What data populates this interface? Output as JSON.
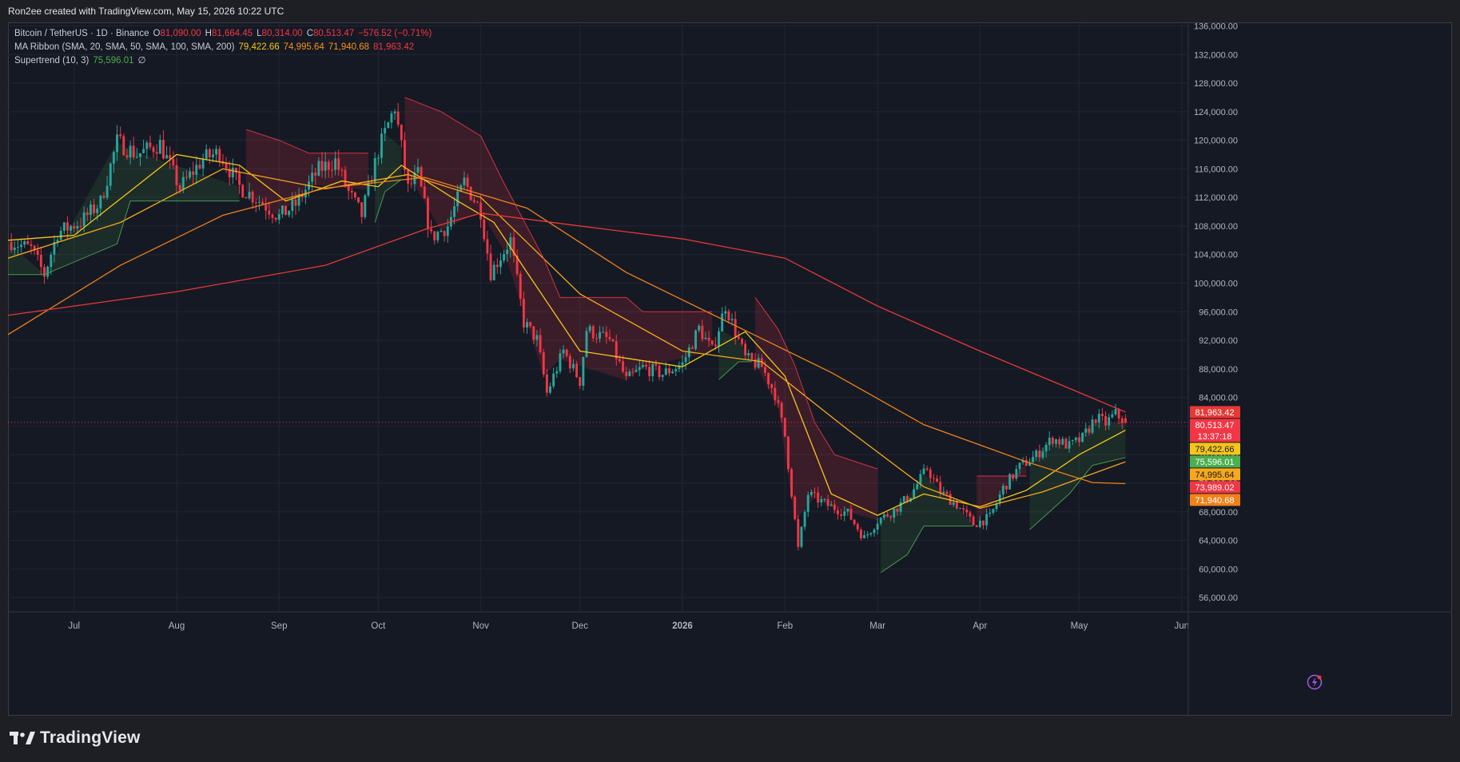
{
  "header": {
    "created_text": "Ron2ee created with TradingView.com, May 15, 2026 10:22 UTC"
  },
  "legend": {
    "symbol": "Bitcoin / TetherUS · 1D · Binance",
    "o_label": "O",
    "o_value": "81,090.00",
    "h_label": "H",
    "h_value": "81,664.45",
    "l_label": "L",
    "l_value": "80,314.00",
    "c_label": "C",
    "c_value": "80,513.47",
    "change": "−576.52 (−0.71%)",
    "ma_title": "MA Ribbon (SMA, 20, SMA, 50, SMA, 100, SMA, 200)",
    "ma_values": [
      "79,422.66",
      "74,995.64",
      "71,940.68",
      "81,963.42"
    ],
    "st_title": "Supertrend (10, 3)",
    "st_value": "75,596.01",
    "st_symbol": "∅"
  },
  "footer": {
    "brand": "TradingView"
  },
  "icons": {
    "brand": "tradingview-logo-icon",
    "alert": "lightning-alert-icon"
  },
  "colors": {
    "up": "#26a69a",
    "down": "#f23645",
    "sma20": "#f5c518",
    "sma50": "#f7a91a",
    "sma100": "#f0811a",
    "sma200": "#e53935",
    "st_up": "#4caf50",
    "st_down": "#f23645"
  },
  "chart_data": {
    "type": "candlestick",
    "x_ticks": [
      "Jul",
      "Aug",
      "Sep",
      "Oct",
      "Nov",
      "Dec",
      "2026",
      "Feb",
      "Mar",
      "Apr",
      "May",
      "Jun"
    ],
    "x_tick_dates": [
      "2025-07-01",
      "2025-08-01",
      "2025-09-01",
      "2025-10-01",
      "2025-11-01",
      "2025-12-01",
      "2026-01-01",
      "2026-02-01",
      "2026-03-01",
      "2026-04-01",
      "2026-05-01",
      "2026-06-01"
    ],
    "x_range": [
      "2025-06-11",
      "2026-06-03"
    ],
    "y_ticks": [
      56000,
      60000,
      64000,
      68000,
      72000,
      76000,
      80000,
      84000,
      88000,
      92000,
      96000,
      100000,
      104000,
      108000,
      112000,
      116000,
      120000,
      124000,
      128000,
      132000,
      136000
    ],
    "ylim": [
      54000,
      136500
    ],
    "price_line": 80513.47,
    "closes": [
      {
        "date": "2025-06-12",
        "close": 105800
      },
      {
        "date": "2025-06-18",
        "close": 104800
      },
      {
        "date": "2025-06-22",
        "close": 101200
      },
      {
        "date": "2025-06-26",
        "close": 107100
      },
      {
        "date": "2025-07-03",
        "close": 108600
      },
      {
        "date": "2025-07-09",
        "close": 111300
      },
      {
        "date": "2025-07-14",
        "close": 119800
      },
      {
        "date": "2025-07-20",
        "close": 118000
      },
      {
        "date": "2025-07-27",
        "close": 119500
      },
      {
        "date": "2025-08-02",
        "close": 113300
      },
      {
        "date": "2025-08-09",
        "close": 117400
      },
      {
        "date": "2025-08-14",
        "close": 118300
      },
      {
        "date": "2025-08-20",
        "close": 113500
      },
      {
        "date": "2025-08-27",
        "close": 111200
      },
      {
        "date": "2025-09-01",
        "close": 109300
      },
      {
        "date": "2025-09-06",
        "close": 111000
      },
      {
        "date": "2025-09-13",
        "close": 115900
      },
      {
        "date": "2025-09-18",
        "close": 117100
      },
      {
        "date": "2025-09-22",
        "close": 112700
      },
      {
        "date": "2025-09-26",
        "close": 109500
      },
      {
        "date": "2025-10-01",
        "close": 118500
      },
      {
        "date": "2025-10-06",
        "close": 124700
      },
      {
        "date": "2025-10-10",
        "close": 113200
      },
      {
        "date": "2025-10-13",
        "close": 115200
      },
      {
        "date": "2025-10-17",
        "close": 106400
      },
      {
        "date": "2025-10-22",
        "close": 108000
      },
      {
        "date": "2025-10-27",
        "close": 114200
      },
      {
        "date": "2025-11-01",
        "close": 110100
      },
      {
        "date": "2025-11-04",
        "close": 101500
      },
      {
        "date": "2025-11-10",
        "close": 106000
      },
      {
        "date": "2025-11-14",
        "close": 94500
      },
      {
        "date": "2025-11-18",
        "close": 92100
      },
      {
        "date": "2025-11-21",
        "close": 84600
      },
      {
        "date": "2025-11-26",
        "close": 90500
      },
      {
        "date": "2025-12-01",
        "close": 86300
      },
      {
        "date": "2025-12-03",
        "close": 93500
      },
      {
        "date": "2025-12-10",
        "close": 92000
      },
      {
        "date": "2025-12-15",
        "close": 86400
      },
      {
        "date": "2025-12-20",
        "close": 88200
      },
      {
        "date": "2025-12-26",
        "close": 87300
      },
      {
        "date": "2026-01-01",
        "close": 88700
      },
      {
        "date": "2026-01-06",
        "close": 93700
      },
      {
        "date": "2026-01-10",
        "close": 90500
      },
      {
        "date": "2026-01-14",
        "close": 96900
      },
      {
        "date": "2026-01-20",
        "close": 89500
      },
      {
        "date": "2026-01-25",
        "close": 88300
      },
      {
        "date": "2026-01-29",
        "close": 84500
      },
      {
        "date": "2026-02-01",
        "close": 78600
      },
      {
        "date": "2026-02-05",
        "close": 62800
      },
      {
        "date": "2026-02-08",
        "close": 70500
      },
      {
        "date": "2026-02-14",
        "close": 68900
      },
      {
        "date": "2026-02-20",
        "close": 67800
      },
      {
        "date": "2026-02-25",
        "close": 64300
      },
      {
        "date": "2026-03-01",
        "close": 66800
      },
      {
        "date": "2026-03-06",
        "close": 68200
      },
      {
        "date": "2026-03-11",
        "close": 70400
      },
      {
        "date": "2026-03-16",
        "close": 74100
      },
      {
        "date": "2026-03-20",
        "close": 70800
      },
      {
        "date": "2026-03-25",
        "close": 69000
      },
      {
        "date": "2026-03-30",
        "close": 66300
      },
      {
        "date": "2026-04-04",
        "close": 67200
      },
      {
        "date": "2026-04-08",
        "close": 71300
      },
      {
        "date": "2026-04-13",
        "close": 74300
      },
      {
        "date": "2026-04-18",
        "close": 75900
      },
      {
        "date": "2026-04-23",
        "close": 78300
      },
      {
        "date": "2026-04-28",
        "close": 77200
      },
      {
        "date": "2026-05-02",
        "close": 78300
      },
      {
        "date": "2026-05-06",
        "close": 81200
      },
      {
        "date": "2026-05-09",
        "close": 80400
      },
      {
        "date": "2026-05-12",
        "close": 81700
      },
      {
        "date": "2026-05-15",
        "close": 80513
      }
    ],
    "series": [
      {
        "key": "sma20",
        "points": [
          {
            "date": "2025-06-11",
            "value": 106000
          },
          {
            "date": "2025-07-01",
            "value": 106700
          },
          {
            "date": "2025-07-15",
            "value": 111800
          },
          {
            "date": "2025-08-01",
            "value": 118000
          },
          {
            "date": "2025-08-20",
            "value": 116500
          },
          {
            "date": "2025-09-03",
            "value": 111500
          },
          {
            "date": "2025-09-20",
            "value": 114300
          },
          {
            "date": "2025-10-01",
            "value": 113500
          },
          {
            "date": "2025-10-08",
            "value": 116500
          },
          {
            "date": "2025-10-25",
            "value": 111500
          },
          {
            "date": "2025-11-05",
            "value": 108500
          },
          {
            "date": "2025-11-15",
            "value": 101500
          },
          {
            "date": "2025-12-01",
            "value": 90500
          },
          {
            "date": "2025-12-15",
            "value": 89500
          },
          {
            "date": "2026-01-01",
            "value": 88300
          },
          {
            "date": "2026-01-20",
            "value": 93200
          },
          {
            "date": "2026-02-01",
            "value": 87000
          },
          {
            "date": "2026-02-15",
            "value": 70500
          },
          {
            "date": "2026-03-01",
            "value": 67500
          },
          {
            "date": "2026-03-15",
            "value": 70500
          },
          {
            "date": "2026-04-01",
            "value": 68700
          },
          {
            "date": "2026-04-15",
            "value": 71000
          },
          {
            "date": "2026-05-01",
            "value": 76000
          },
          {
            "date": "2026-05-15",
            "value": 79422
          }
        ]
      },
      {
        "key": "sma50",
        "points": [
          {
            "date": "2025-06-11",
            "value": 103500
          },
          {
            "date": "2025-07-15",
            "value": 108500
          },
          {
            "date": "2025-08-15",
            "value": 116000
          },
          {
            "date": "2025-09-15",
            "value": 113200
          },
          {
            "date": "2025-10-10",
            "value": 115200
          },
          {
            "date": "2025-11-01",
            "value": 112000
          },
          {
            "date": "2025-12-01",
            "value": 98500
          },
          {
            "date": "2026-01-01",
            "value": 90500
          },
          {
            "date": "2026-01-25",
            "value": 89000
          },
          {
            "date": "2026-02-20",
            "value": 79500
          },
          {
            "date": "2026-03-15",
            "value": 71500
          },
          {
            "date": "2026-04-01",
            "value": 68500
          },
          {
            "date": "2026-04-20",
            "value": 70800
          },
          {
            "date": "2026-05-15",
            "value": 74995
          }
        ]
      },
      {
        "key": "sma100",
        "points": [
          {
            "date": "2025-06-11",
            "value": 92800
          },
          {
            "date": "2025-07-15",
            "value": 102500
          },
          {
            "date": "2025-08-15",
            "value": 109500
          },
          {
            "date": "2025-09-15",
            "value": 113300
          },
          {
            "date": "2025-10-15",
            "value": 114800
          },
          {
            "date": "2025-11-15",
            "value": 110500
          },
          {
            "date": "2025-12-15",
            "value": 101500
          },
          {
            "date": "2026-01-15",
            "value": 94500
          },
          {
            "date": "2026-02-15",
            "value": 87500
          },
          {
            "date": "2026-03-15",
            "value": 80200
          },
          {
            "date": "2026-04-15",
            "value": 75000
          },
          {
            "date": "2026-05-05",
            "value": 72100
          },
          {
            "date": "2026-05-15",
            "value": 71940
          }
        ]
      },
      {
        "key": "sma200",
        "points": [
          {
            "date": "2025-06-11",
            "value": 95500
          },
          {
            "date": "2025-08-01",
            "value": 98800
          },
          {
            "date": "2025-09-15",
            "value": 102500
          },
          {
            "date": "2025-10-15",
            "value": 107500
          },
          {
            "date": "2025-11-01",
            "value": 109800
          },
          {
            "date": "2025-12-01",
            "value": 108000
          },
          {
            "date": "2026-01-01",
            "value": 106200
          },
          {
            "date": "2026-02-01",
            "value": 103500
          },
          {
            "date": "2026-03-01",
            "value": 96800
          },
          {
            "date": "2026-04-01",
            "value": 90500
          },
          {
            "date": "2026-05-01",
            "value": 84700
          },
          {
            "date": "2026-05-15",
            "value": 81963
          }
        ]
      },
      {
        "key": "supertrend_up",
        "points": [
          {
            "date": "2025-06-11",
            "value": 101200
          },
          {
            "date": "2025-06-22",
            "value": 101200
          },
          {
            "date": "2025-07-14",
            "value": 105500
          },
          {
            "date": "2025-07-18",
            "value": 111500
          },
          {
            "date": "2025-08-20",
            "value": 111500
          }
        ]
      },
      {
        "key": "supertrend_down",
        "points": [
          {
            "date": "2025-08-22",
            "value": 121500
          },
          {
            "date": "2025-09-01",
            "value": 120000
          },
          {
            "date": "2025-09-10",
            "value": 118200
          },
          {
            "date": "2025-09-28",
            "value": 118200
          }
        ]
      },
      {
        "key": "supertrend_up",
        "points": [
          {
            "date": "2025-09-30",
            "value": 108500
          },
          {
            "date": "2025-10-03",
            "value": 112800
          },
          {
            "date": "2025-10-08",
            "value": 114500
          }
        ]
      },
      {
        "key": "supertrend_down",
        "points": [
          {
            "date": "2025-10-09",
            "value": 126000
          },
          {
            "date": "2025-10-20",
            "value": 124000
          },
          {
            "date": "2025-11-01",
            "value": 120600
          },
          {
            "date": "2025-11-08",
            "value": 114000
          },
          {
            "date": "2025-11-20",
            "value": 103500
          },
          {
            "date": "2025-11-25",
            "value": 98000
          },
          {
            "date": "2025-12-15",
            "value": 98000
          },
          {
            "date": "2025-12-20",
            "value": 96000
          },
          {
            "date": "2026-01-10",
            "value": 96000
          }
        ]
      },
      {
        "key": "supertrend_up",
        "points": [
          {
            "date": "2026-01-12",
            "value": 86500
          },
          {
            "date": "2026-01-18",
            "value": 89000
          },
          {
            "date": "2026-01-22",
            "value": 89000
          }
        ]
      },
      {
        "key": "supertrend_down",
        "points": [
          {
            "date": "2026-01-23",
            "value": 98000
          },
          {
            "date": "2026-01-30",
            "value": 93500
          },
          {
            "date": "2026-02-04",
            "value": 88500
          },
          {
            "date": "2026-02-10",
            "value": 80500
          },
          {
            "date": "2026-02-16",
            "value": 76000
          },
          {
            "date": "2026-03-01",
            "value": 74000
          }
        ]
      },
      {
        "key": "supertrend_up",
        "points": [
          {
            "date": "2026-03-02",
            "value": 59500
          },
          {
            "date": "2026-03-10",
            "value": 62000
          },
          {
            "date": "2026-03-15",
            "value": 66000
          },
          {
            "date": "2026-03-30",
            "value": 66000
          }
        ]
      },
      {
        "key": "supertrend_down",
        "points": [
          {
            "date": "2026-03-31",
            "value": 73000
          },
          {
            "date": "2026-04-15",
            "value": 73000
          }
        ]
      },
      {
        "key": "supertrend_up",
        "points": [
          {
            "date": "2026-04-16",
            "value": 65500
          },
          {
            "date": "2026-04-22",
            "value": 68000
          },
          {
            "date": "2026-04-28",
            "value": 70500
          },
          {
            "date": "2026-05-05",
            "value": 74500
          },
          {
            "date": "2026-05-15",
            "value": 75596
          }
        ]
      }
    ],
    "price_labels": [
      {
        "text": "81,963.42",
        "value": 81963.42,
        "color": "#e53935"
      },
      {
        "text": "80,513.47",
        "value": 80513.47,
        "color": "#f23645",
        "extra": "13:37:18"
      },
      {
        "text": "79,422.66",
        "value": 79422.66,
        "color": "#f5c518",
        "dark": true
      },
      {
        "text": "75,596.01",
        "value": 75596.01,
        "color": "#4caf50"
      },
      {
        "text": "74,995.64",
        "value": 74995.64,
        "color": "#f7a91a",
        "dark": true
      },
      {
        "text": "73,989.02",
        "value": 73989.02,
        "color": "#f23645"
      },
      {
        "text": "71,940.68",
        "value": 71940.68,
        "color": "#f0811a"
      }
    ]
  }
}
